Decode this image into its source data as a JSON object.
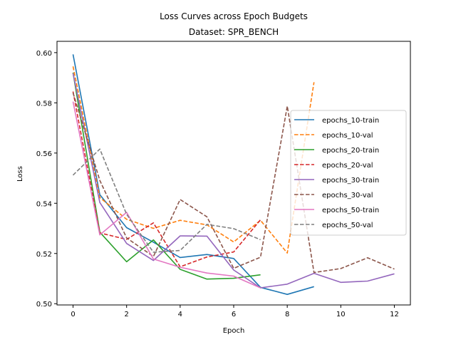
{
  "chart_data": {
    "type": "line",
    "title": "Loss Curves across Epoch Budgets",
    "subtitle": "Dataset: SPR_BENCH",
    "xlabel": "Epoch",
    "ylabel": "Loss",
    "xlim": [
      -0.6,
      12.6
    ],
    "ylim": [
      0.4995,
      0.6045
    ],
    "x_ticks": [
      "0",
      "2",
      "4",
      "6",
      "8",
      "10",
      "12"
    ],
    "y_ticks": [
      "0.50",
      "0.52",
      "0.54",
      "0.56",
      "0.58",
      "0.60"
    ],
    "grid": false,
    "legend_position": "center-right",
    "series": [
      {
        "name": "epochs_10-train",
        "color": "#1f77b4",
        "dash": "solid",
        "x": [
          0,
          1,
          2,
          3,
          4,
          5,
          6,
          7,
          8,
          9
        ],
        "values": [
          0.5993,
          0.5434,
          0.5303,
          0.5245,
          0.5184,
          0.5196,
          0.518,
          0.5065,
          0.5037,
          0.5068
        ]
      },
      {
        "name": "epochs_10-val",
        "color": "#ff7f0e",
        "dash": "dashed",
        "x": [
          0,
          1,
          2,
          3,
          4,
          5,
          6,
          7,
          8,
          9
        ],
        "values": [
          0.5945,
          0.5423,
          0.5336,
          0.53,
          0.5332,
          0.5314,
          0.5246,
          0.5332,
          0.5202,
          0.5882
        ]
      },
      {
        "name": "epochs_20-train",
        "color": "#2ca02c",
        "dash": "solid",
        "x": [
          0,
          1,
          2,
          3,
          4,
          5,
          6,
          7
        ],
        "values": [
          0.592,
          0.5285,
          0.5167,
          0.5254,
          0.5137,
          0.5098,
          0.5101,
          0.5115
        ]
      },
      {
        "name": "epochs_20-val",
        "color": "#d62728",
        "dash": "dashed",
        "x": [
          0,
          1,
          2,
          3,
          4,
          5,
          6,
          7
        ],
        "values": [
          0.5845,
          0.5282,
          0.5256,
          0.5322,
          0.5147,
          0.5186,
          0.5206,
          0.5334
        ]
      },
      {
        "name": "epochs_30-train",
        "color": "#9467bd",
        "dash": "solid",
        "x": [
          0,
          1,
          2,
          3,
          4,
          5,
          6,
          7,
          8,
          9,
          10,
          11,
          12
        ],
        "values": [
          0.5918,
          0.5403,
          0.524,
          0.5172,
          0.527,
          0.5269,
          0.5134,
          0.5063,
          0.5078,
          0.5121,
          0.5085,
          0.509,
          0.5119
        ]
      },
      {
        "name": "epochs_30-val",
        "color": "#8c564b",
        "dash": "dashed",
        "x": [
          0,
          1,
          2,
          3,
          4,
          5,
          6,
          7,
          8,
          9,
          10,
          11,
          12
        ],
        "values": [
          0.584,
          0.5491,
          0.5262,
          0.5188,
          0.5415,
          0.5346,
          0.5141,
          0.5185,
          0.5787,
          0.5124,
          0.514,
          0.5183,
          0.5138
        ]
      },
      {
        "name": "epochs_50-train",
        "color": "#e377c2",
        "dash": "solid",
        "x": [
          0,
          1,
          2,
          3,
          4,
          5,
          6,
          7
        ],
        "values": [
          0.5805,
          0.5274,
          0.5364,
          0.5178,
          0.5145,
          0.5122,
          0.511,
          0.5063
        ]
      },
      {
        "name": "epochs_50-val",
        "color": "#7f7f7f",
        "dash": "dashed",
        "x": [
          0,
          1,
          2,
          3,
          4,
          5,
          6,
          7
        ],
        "values": [
          0.5512,
          0.5616,
          0.5356,
          0.5205,
          0.5212,
          0.5316,
          0.5299,
          0.5255
        ]
      }
    ]
  }
}
